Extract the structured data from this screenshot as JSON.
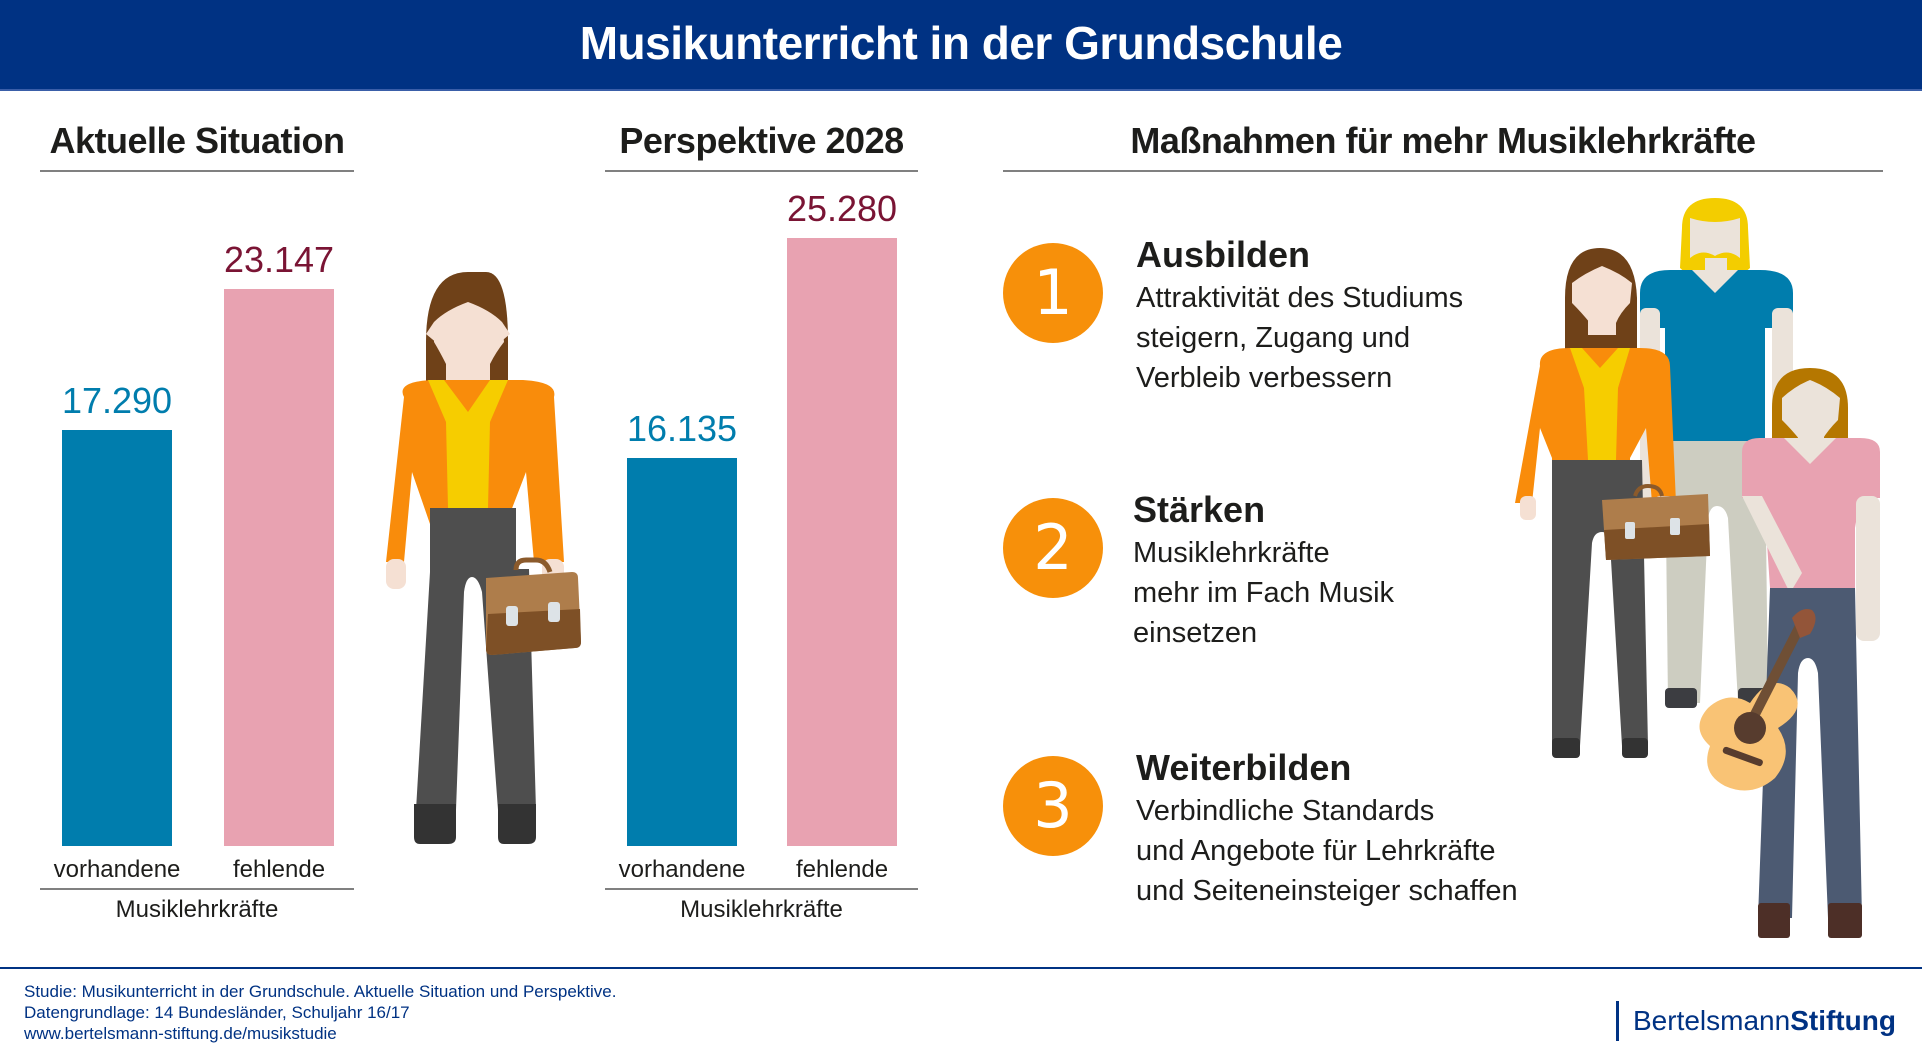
{
  "header": {
    "title": "Musikunterricht in der Grundschule"
  },
  "colors": {
    "header_bg": "#003283",
    "vorhandene": "#007dad",
    "fehlende": "#e8a2b1",
    "vorhandene_label": "#007dad",
    "fehlende_label": "#7a1434",
    "accent_orange": "#f7900a"
  },
  "chart_data": [
    {
      "type": "bar",
      "title": "Aktuelle Situation",
      "categories": [
        "vorhandene",
        "fehlende"
      ],
      "values": [
        17290,
        23147
      ],
      "value_labels": [
        "17.290",
        "23.147"
      ],
      "xlabel": "Musiklehrkräfte",
      "ylabel": "",
      "ylim": [
        0,
        25280
      ],
      "grid": false
    },
    {
      "type": "bar",
      "title": "Perspektive 2028",
      "categories": [
        "vorhandene",
        "fehlende"
      ],
      "values": [
        16135,
        25280
      ],
      "value_labels": [
        "16.135",
        "25.280"
      ],
      "xlabel": "Musiklehrkräfte",
      "ylabel": "",
      "ylim": [
        0,
        25280
      ],
      "grid": false
    }
  ],
  "measures": {
    "title": "Maßnahmen für mehr Musiklehrkräfte",
    "items": [
      {
        "number": "1",
        "title": "Ausbilden",
        "text": "Attraktivität des Studiums\nsteigern, Zugang und\nVerbleib verbessern"
      },
      {
        "number": "2",
        "title": "Stärken",
        "text": "Musiklehrkräfte\nmehr im Fach Musik\neinsetzen"
      },
      {
        "number": "3",
        "title": "Weiterbilden",
        "text": "Verbindliche Standards\nund Angebote für Lehrkräfte\nund Seiteneinsteiger schaffen"
      }
    ]
  },
  "illustrations": {
    "teacher": "woman-with-briefcase-icon",
    "group": "teachers-group-with-guitar-icon"
  },
  "footer": {
    "lines": [
      "Studie: Musikunterricht in der Grundschule. Aktuelle Situation und Perspektive.",
      "Datengrundlage: 14 Bundesländer, Schuljahr 16/17",
      "www.bertelsmann-stiftung.de/musikstudie"
    ],
    "logo_regular": "Bertelsmann",
    "logo_bold": "Stiftung"
  }
}
